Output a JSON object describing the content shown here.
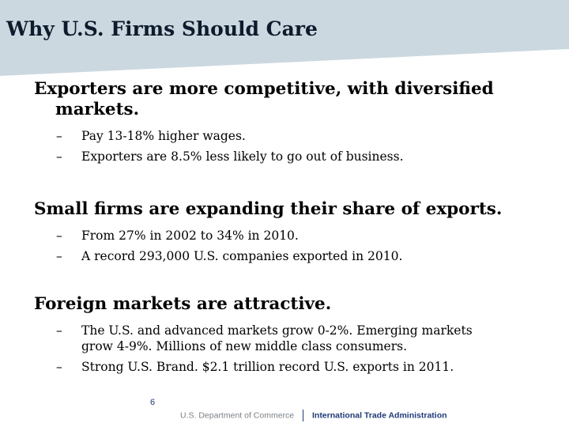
{
  "slide": {
    "title": "Why U.S. Firms Should Care",
    "page_number": "6"
  },
  "sections": [
    {
      "heading_line1": "Exporters are more competitive, with diversified",
      "heading_line2": "markets.",
      "bullets": [
        {
          "line1": "Pay 13-18% higher wages.",
          "line2": ""
        },
        {
          "line1": "Exporters are 8.5% less likely to go out of business.",
          "line2": ""
        }
      ]
    },
    {
      "heading_line1": "Small firms are expanding their share of  exports.",
      "heading_line2": "",
      "bullets": [
        {
          "line1": "From 27% in 2002 to 34% in 2010.",
          "line2": ""
        },
        {
          "line1": "A record 293,000 U.S. companies exported in 2010.",
          "line2": ""
        }
      ]
    },
    {
      "heading_line1": "Foreign markets are attractive.",
      "heading_line2": "",
      "bullets": [
        {
          "line1": "The U.S. and advanced markets grow 0-2%.  Emerging markets",
          "line2": "grow 4-9%.  Millions of new middle class consumers."
        },
        {
          "line1": "Strong U.S. Brand.   $2.1 trillion record U.S. exports in 2011.",
          "line2": ""
        }
      ]
    }
  ],
  "footer": {
    "department": "U.S. Department of Commerce",
    "agency": "International Trade Administration"
  },
  "bullet_marker": "–",
  "colors": {
    "title_band": "#ccd8e0",
    "title_text": "#0d1b2c",
    "footer_blue": "#1f3b78",
    "footer_gray": "#7a8086"
  }
}
